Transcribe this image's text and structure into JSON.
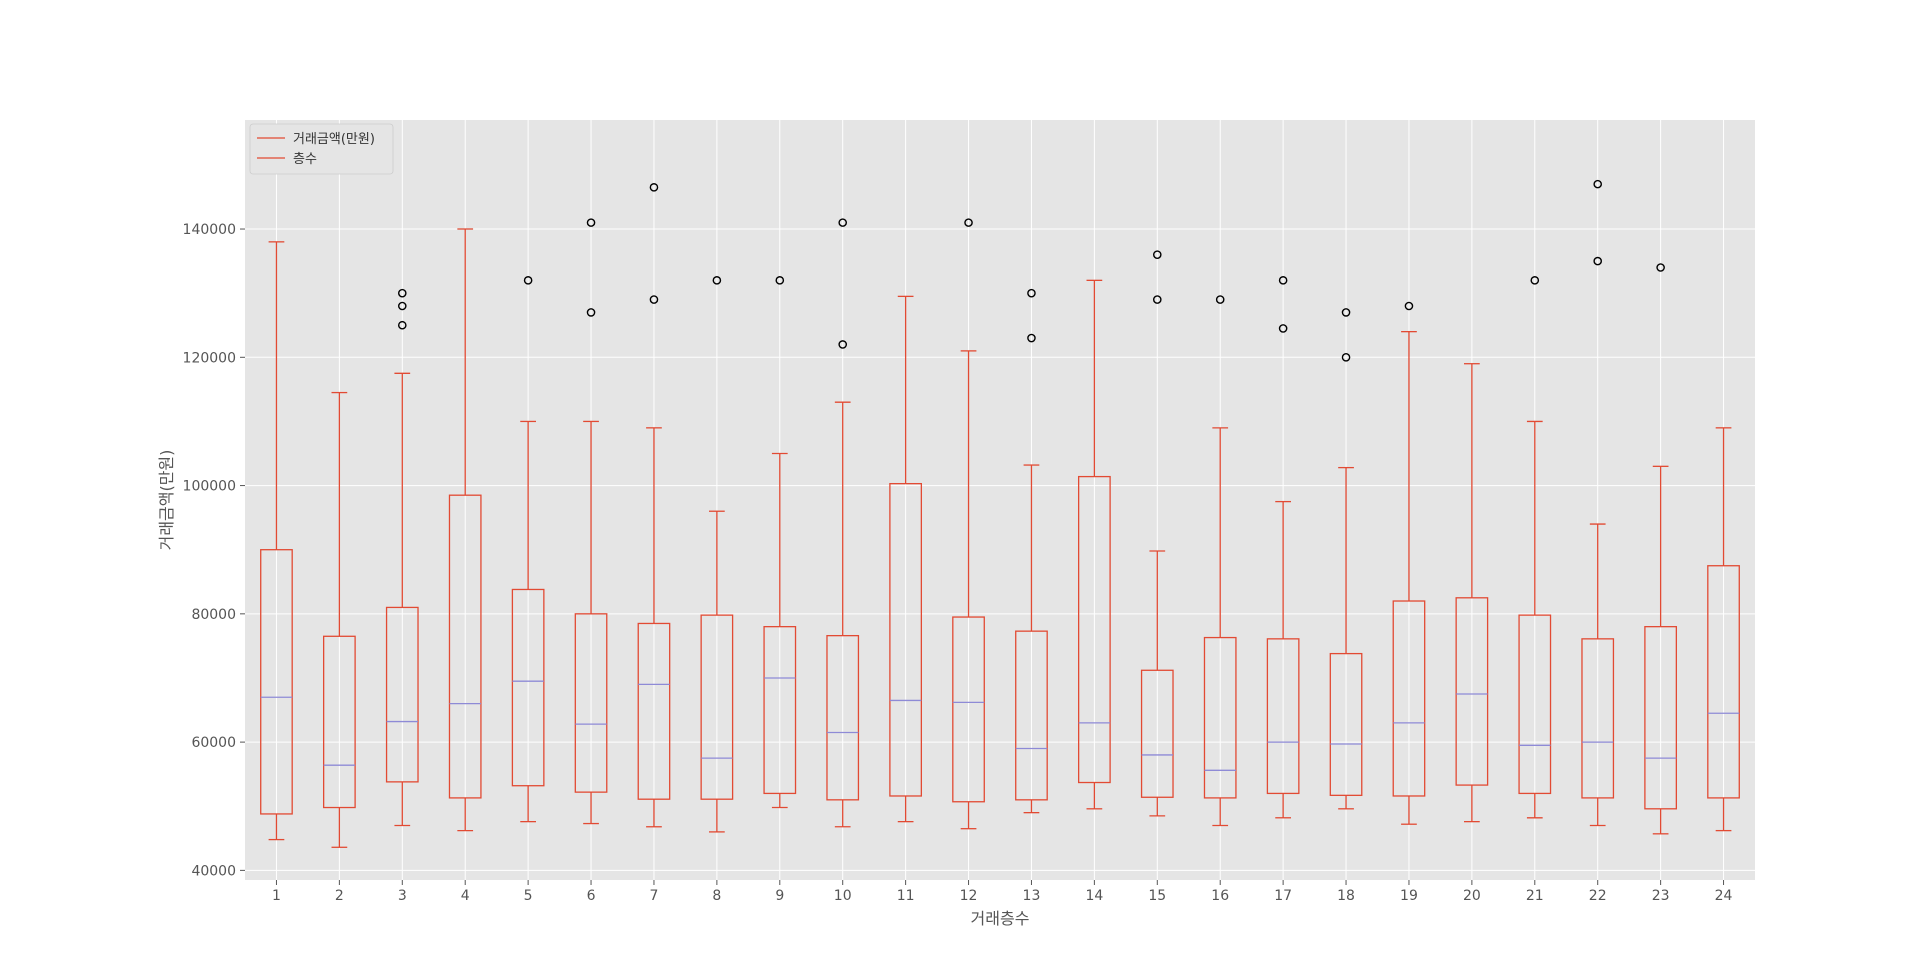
{
  "chart_data": {
    "type": "box",
    "xlabel": "거래층수",
    "ylabel": "거래금액(만원)",
    "ylim": [
      38500,
      157000
    ],
    "yticks": [
      40000,
      60000,
      80000,
      100000,
      120000,
      140000
    ],
    "grid": true,
    "legend": {
      "placement": "top-left",
      "entries": [
        "거래금액(만원)",
        "층수"
      ]
    },
    "colors": {
      "box": "#e24a33",
      "median": "#8e8ad6",
      "background": "#e5e5e5",
      "grid": "#ffffff",
      "flier": "#000000"
    },
    "categories": [
      "1",
      "2",
      "3",
      "4",
      "5",
      "6",
      "7",
      "8",
      "9",
      "10",
      "11",
      "12",
      "13",
      "14",
      "15",
      "16",
      "17",
      "18",
      "19",
      "20",
      "21",
      "22",
      "23",
      "24"
    ],
    "boxes": [
      {
        "whislo": 44800,
        "q1": 48800,
        "med": 67000,
        "q3": 90000,
        "whishi": 138000,
        "fliers": []
      },
      {
        "whislo": 43600,
        "q1": 49800,
        "med": 56400,
        "q3": 76500,
        "whishi": 114500,
        "fliers": []
      },
      {
        "whislo": 47000,
        "q1": 53800,
        "med": 63200,
        "q3": 81000,
        "whishi": 117500,
        "fliers": [
          125000,
          128000,
          130000
        ]
      },
      {
        "whislo": 46200,
        "q1": 51300,
        "med": 66000,
        "q3": 98500,
        "whishi": 140000,
        "fliers": []
      },
      {
        "whislo": 47600,
        "q1": 53200,
        "med": 69500,
        "q3": 83800,
        "whishi": 110000,
        "fliers": [
          132000
        ]
      },
      {
        "whislo": 47300,
        "q1": 52200,
        "med": 62800,
        "q3": 80000,
        "whishi": 110000,
        "fliers": [
          127000,
          141000
        ]
      },
      {
        "whislo": 46800,
        "q1": 51100,
        "med": 69000,
        "q3": 78500,
        "whishi": 109000,
        "fliers": [
          129000,
          146500
        ]
      },
      {
        "whislo": 46000,
        "q1": 51100,
        "med": 57500,
        "q3": 79800,
        "whishi": 96000,
        "fliers": [
          132000
        ]
      },
      {
        "whislo": 49800,
        "q1": 52000,
        "med": 70000,
        "q3": 78000,
        "whishi": 105000,
        "fliers": [
          132000
        ]
      },
      {
        "whislo": 46800,
        "q1": 51000,
        "med": 61500,
        "q3": 76600,
        "whishi": 113000,
        "fliers": [
          122000,
          141000
        ]
      },
      {
        "whislo": 47600,
        "q1": 51600,
        "med": 66500,
        "q3": 100300,
        "whishi": 129500,
        "fliers": []
      },
      {
        "whislo": 46500,
        "q1": 50700,
        "med": 66200,
        "q3": 79500,
        "whishi": 121000,
        "fliers": [
          141000
        ]
      },
      {
        "whislo": 49000,
        "q1": 51000,
        "med": 59000,
        "q3": 77300,
        "whishi": 103200,
        "fliers": [
          123000,
          130000
        ]
      },
      {
        "whislo": 49600,
        "q1": 53700,
        "med": 63000,
        "q3": 101400,
        "whishi": 132000,
        "fliers": []
      },
      {
        "whislo": 48500,
        "q1": 51400,
        "med": 58000,
        "q3": 71200,
        "whishi": 89800,
        "fliers": [
          129000,
          136000
        ]
      },
      {
        "whislo": 47000,
        "q1": 51300,
        "med": 55600,
        "q3": 76300,
        "whishi": 109000,
        "fliers": [
          129000
        ]
      },
      {
        "whislo": 48200,
        "q1": 52000,
        "med": 60000,
        "q3": 76100,
        "whishi": 97500,
        "fliers": [
          124500,
          132000
        ]
      },
      {
        "whislo": 49600,
        "q1": 51700,
        "med": 59700,
        "q3": 73800,
        "whishi": 102800,
        "fliers": [
          120000,
          127000
        ]
      },
      {
        "whislo": 47200,
        "q1": 51600,
        "med": 63000,
        "q3": 82000,
        "whishi": 124000,
        "fliers": [
          128000
        ]
      },
      {
        "whislo": 47600,
        "q1": 53300,
        "med": 67500,
        "q3": 82500,
        "whishi": 119000,
        "fliers": []
      },
      {
        "whislo": 48200,
        "q1": 52000,
        "med": 59500,
        "q3": 79800,
        "whishi": 110000,
        "fliers": [
          132000
        ]
      },
      {
        "whislo": 47000,
        "q1": 51300,
        "med": 60000,
        "q3": 76100,
        "whishi": 94000,
        "fliers": [
          135000,
          147000
        ]
      },
      {
        "whislo": 45700,
        "q1": 49600,
        "med": 57500,
        "q3": 78000,
        "whishi": 103000,
        "fliers": [
          134000
        ]
      },
      {
        "whislo": 46200,
        "q1": 51300,
        "med": 64500,
        "q3": 87500,
        "whishi": 109000,
        "fliers": []
      }
    ]
  }
}
